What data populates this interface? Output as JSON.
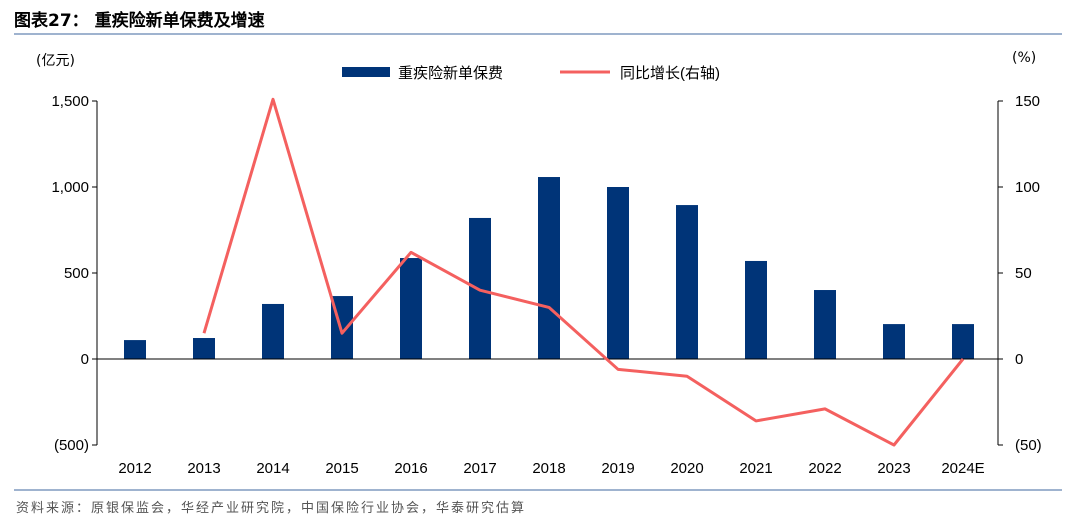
{
  "title": "图表27：  重疾险新单保费及增速",
  "source": "资料来源：原银保监会，华经产业研究院，中国保险行业协会，华泰研究估算",
  "chart_data": {
    "type": "bar+line",
    "title": "重疾险新单保费及增速",
    "left_unit": "(亿元)",
    "right_unit": "(%)",
    "categories": [
      "2012",
      "2013",
      "2014",
      "2015",
      "2016",
      "2017",
      "2018",
      "2019",
      "2020",
      "2021",
      "2022",
      "2023",
      "2024E"
    ],
    "series": [
      {
        "name": "重疾险新单保费",
        "axis": "left",
        "type": "bar",
        "color": "#003478",
        "values": [
          110,
          122,
          320,
          366,
          587,
          820,
          1058,
          1000,
          895,
          570,
          401,
          203,
          203
        ]
      },
      {
        "name": "同比增长(右轴)",
        "axis": "right",
        "type": "line",
        "color": "#f4605f",
        "values": [
          null,
          15,
          151,
          15,
          62,
          40,
          30,
          -6,
          -10,
          -36,
          -29,
          -50,
          0
        ]
      }
    ],
    "left_ylim": [
      -500,
      1500
    ],
    "right_ylim": [
      -50,
      150
    ],
    "left_ticks": [
      {
        "v": 1500,
        "label": "1,500"
      },
      {
        "v": 1000,
        "label": "1,000"
      },
      {
        "v": 500,
        "label": "500"
      },
      {
        "v": 0,
        "label": "0"
      },
      {
        "v": -500,
        "label": "(500)"
      }
    ],
    "right_ticks": [
      {
        "v": 150,
        "label": "150"
      },
      {
        "v": 100,
        "label": "100"
      },
      {
        "v": 50,
        "label": "50"
      },
      {
        "v": 0,
        "label": "0"
      },
      {
        "v": -50,
        "label": "(50)"
      }
    ],
    "legend_position": "top-center",
    "grid": false
  }
}
